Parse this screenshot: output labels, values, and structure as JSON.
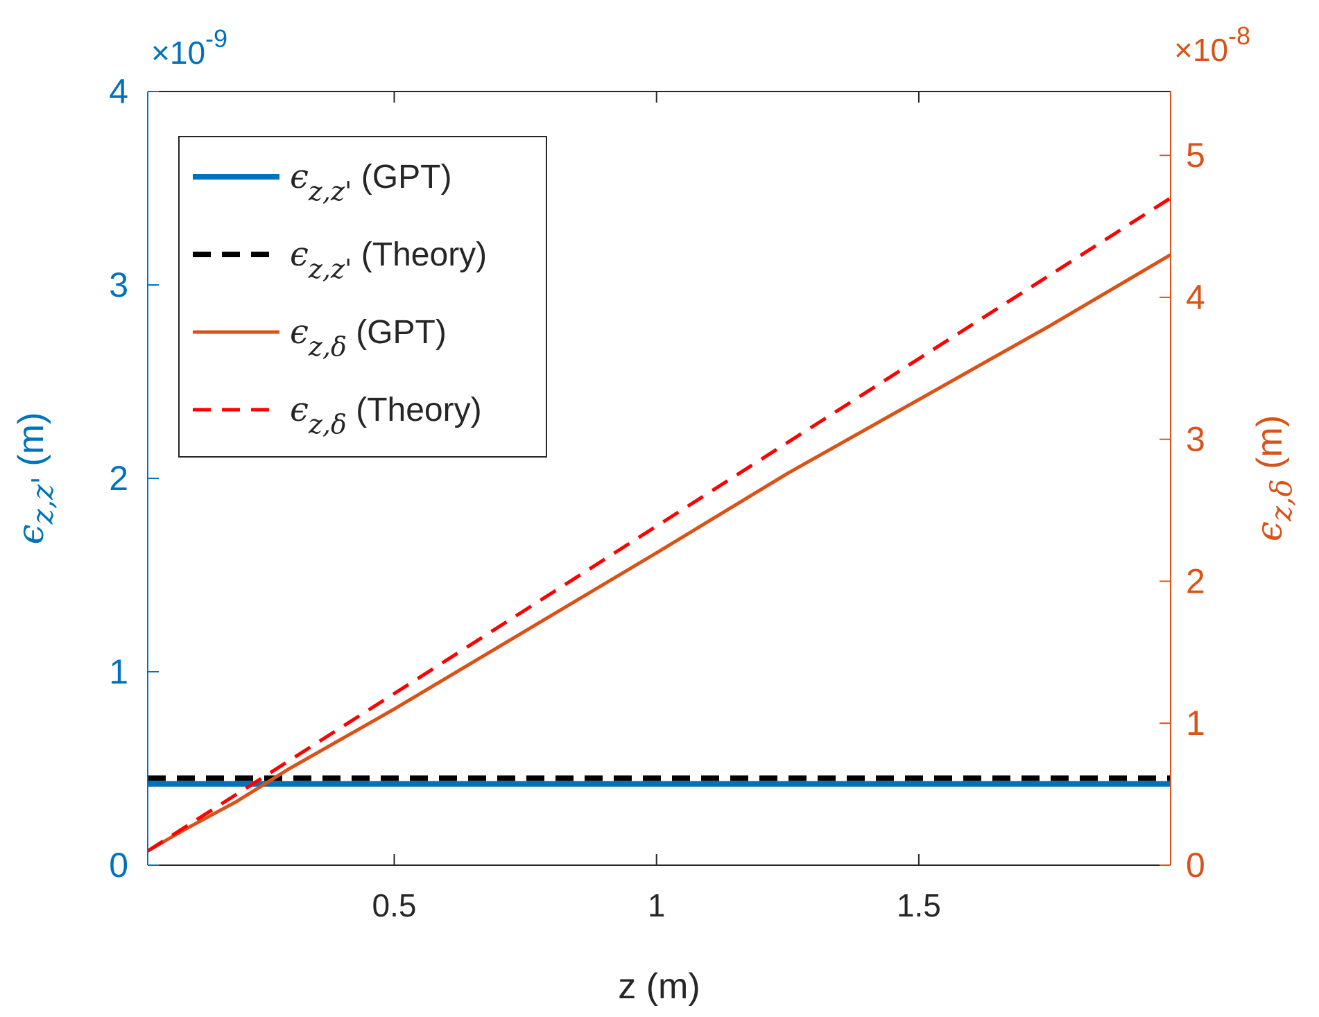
{
  "chart_data": {
    "type": "line",
    "xlabel": "z (m)",
    "xlim": [
      0.03,
      1.98
    ],
    "x_ticks": [
      0.5,
      1,
      1.5
    ],
    "x_tick_labels": [
      "0.5",
      "1",
      "1.5"
    ],
    "left_axis": {
      "label_symbol": "ϵ",
      "label_sub": "z,z'",
      "label_unit": "(m)",
      "color": "#0072BD",
      "multiplier_text": "×10",
      "multiplier_exp": "-9",
      "ylim": [
        0,
        4
      ],
      "ticks": [
        0,
        1,
        2,
        3,
        4
      ],
      "tick_labels": [
        "0",
        "1",
        "2",
        "3",
        "4"
      ]
    },
    "right_axis": {
      "label_symbol": "ϵ",
      "label_sub": "z,δ",
      "label_unit": "(m)",
      "color": "#D95319",
      "multiplier_text": "×10",
      "multiplier_exp": "-8",
      "ylim": [
        0,
        5.45
      ],
      "ticks": [
        0,
        1,
        2,
        3,
        4,
        5
      ],
      "tick_labels": [
        "0",
        "1",
        "2",
        "3",
        "4",
        "5"
      ]
    },
    "series": [
      {
        "name": "ϵz,z' (GPT)",
        "symbol": "ϵ",
        "sub": "z,z'",
        "tag": "(GPT)",
        "axis": "left",
        "color": "#0072BD",
        "dash": "solid",
        "x": [
          0.03,
          1.98
        ],
        "y": [
          0.42,
          0.42
        ]
      },
      {
        "name": "ϵz,z' (Theory)",
        "symbol": "ϵ",
        "sub": "z,z'",
        "tag": "(Theory)",
        "axis": "left",
        "color": "#000000",
        "dash": "dashed",
        "x": [
          0.03,
          1.98
        ],
        "y": [
          0.45,
          0.45
        ]
      },
      {
        "name": "ϵz,δ (GPT)",
        "symbol": "ϵ",
        "sub": "z,δ",
        "tag": "(GPT)",
        "axis": "right",
        "color": "#D95319",
        "dash": "solid",
        "x": [
          0.03,
          0.1,
          0.2,
          0.3,
          0.5,
          0.75,
          1.0,
          1.25,
          1.5,
          1.75,
          1.98
        ],
        "y": [
          0.1,
          0.25,
          0.45,
          0.68,
          1.1,
          1.65,
          2.2,
          2.76,
          3.28,
          3.8,
          4.3
        ]
      },
      {
        "name": "ϵz,δ (Theory)",
        "symbol": "ϵ",
        "sub": "z,δ",
        "tag": "(Theory)",
        "axis": "right",
        "color": "#FF0000",
        "dash": "dashed",
        "x": [
          0.03,
          1.98
        ],
        "y": [
          0.1,
          4.7
        ]
      }
    ],
    "legend_position": "top-left"
  }
}
